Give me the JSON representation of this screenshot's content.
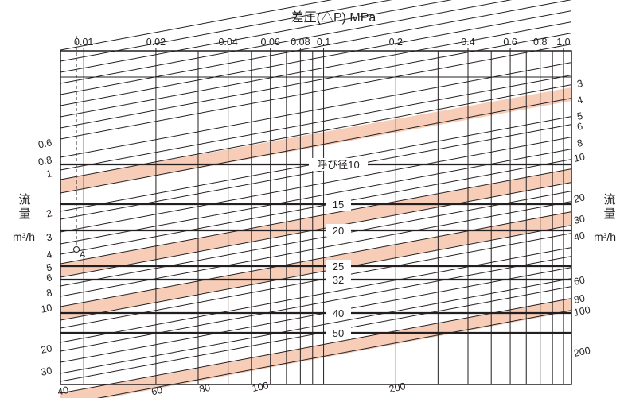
{
  "chart_data": {
    "type": "line",
    "title": "差圧(△P) MPa",
    "left_axis_label": [
      "流",
      "量",
      "m³/h"
    ],
    "right_axis_label": [
      "流",
      "量",
      "m³/h"
    ],
    "top_ticks": [
      {
        "value": 0.01,
        "label": "0.01"
      },
      {
        "value": 0.02,
        "label": "0.02"
      },
      {
        "value": 0.04,
        "label": "0.04"
      },
      {
        "value": 0.06,
        "label": "0.06"
      },
      {
        "value": 0.08,
        "label": "0.08"
      },
      {
        "value": 0.1,
        "label": "0.1"
      },
      {
        "value": 0.2,
        "label": "0.2"
      },
      {
        "value": 0.4,
        "label": "0.4"
      },
      {
        "value": 0.6,
        "label": "0.6"
      },
      {
        "value": 0.8,
        "label": "0.8"
      },
      {
        "value": 1.0,
        "label": "1.0"
      }
    ],
    "xlim": [
      0.008,
      1.08
    ],
    "x_scale": "log",
    "top_minor_ticks": [
      0.03,
      0.05,
      0.07,
      0.09,
      0.3,
      0.5,
      0.7,
      0.9
    ],
    "left_flow_labels": [
      "0.6",
      "0.8",
      "1",
      "2",
      "3",
      "4",
      "5",
      "6",
      "8",
      "10",
      "20",
      "30"
    ],
    "right_flow_labels": [
      "3",
      "4",
      "5",
      "6",
      "8",
      "10",
      "20",
      "30",
      "40",
      "60",
      "80",
      "100",
      "200"
    ],
    "bottom_flow_labels": [
      "40",
      "60",
      "80",
      "100",
      "200"
    ],
    "nominal_size_lines": [
      {
        "label": "呼び径10"
      },
      {
        "label": "15"
      },
      {
        "label": "20"
      },
      {
        "label": "25"
      },
      {
        "label": "32"
      },
      {
        "label": "40"
      },
      {
        "label": "50"
      }
    ],
    "point_label": "A",
    "reference_pressure": 0.01,
    "grid": true,
    "highlight_color": "#f7cdb8",
    "line_color": "#231f20"
  }
}
